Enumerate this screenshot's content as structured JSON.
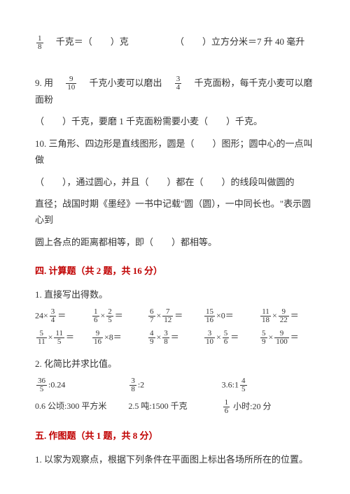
{
  "top": {
    "left_prefix_frac": {
      "n": "1",
      "d": "8"
    },
    "left_text": "　千克＝（　　）克",
    "right_text": "（　　）立方分米＝7 升 40 毫升"
  },
  "q9": {
    "prefix": "9. 用　",
    "frac1": {
      "n": "9",
      "d": "10"
    },
    "mid1": "　千克小麦可以磨出　",
    "frac2": {
      "n": "3",
      "d": "4"
    },
    "mid2": "　千克面粉，每千克小麦可以磨面粉",
    "line2": "（　　）千克，要磨 1 千克面粉需要小麦（　　）千克。"
  },
  "q10": {
    "l1": "10. 三角形、四边形是直线图形，圆是（　　）图形；圆中心的一点叫做",
    "l2": "（　　），通过圆心，并且（　　）都在（　　）的线段叫做圆的",
    "l3": "直径；战国时期《墨经》一书中记载\"圆（圆），一中同长也。\"表示圆心到",
    "l4": "圆上各点的距离都相等，即（　　）都相等。"
  },
  "sec4_title": "四. 计算题（共 2 题，共 16 分）",
  "calc1_title": "1. 直接写出得数。",
  "calc1_rows": [
    [
      {
        "a": {
          "n": "",
          "t": "24×"
        },
        "f": {
          "n": "3",
          "d": "4"
        },
        "eq": "＝"
      },
      {
        "f1": {
          "n": "1",
          "d": "6"
        },
        "op": "×",
        "f2": {
          "n": "2",
          "d": "5"
        },
        "eq": "＝"
      },
      {
        "f1": {
          "n": "6",
          "d": "7"
        },
        "op": "×",
        "f2": {
          "n": "7",
          "d": "12"
        },
        "eq": "＝"
      },
      {
        "f1": {
          "n": "15",
          "d": "16"
        },
        "op": "×0",
        "eq": "＝"
      },
      {
        "f1": {
          "n": "11",
          "d": "18"
        },
        "op": "×",
        "f2": {
          "n": "9",
          "d": "22"
        },
        "eq": "＝"
      }
    ],
    [
      {
        "f1": {
          "n": "5",
          "d": "11"
        },
        "op": "×",
        "f2": {
          "n": "11",
          "d": "5"
        },
        "eq": "＝"
      },
      {
        "f1": {
          "n": "9",
          "d": "16"
        },
        "op": "×8",
        "eq": "＝"
      },
      {
        "f1": {
          "n": "4",
          "d": "9"
        },
        "op": "×",
        "f2": {
          "n": "3",
          "d": "8"
        },
        "eq": "＝"
      },
      {
        "f1": {
          "n": "3",
          "d": "10"
        },
        "op": "×",
        "f2": {
          "n": "5",
          "d": "6"
        },
        "eq": "＝"
      },
      {
        "f1": {
          "n": "5",
          "d": "9"
        },
        "op": "×",
        "f2": {
          "n": "9",
          "d": "100"
        },
        "eq": "＝"
      }
    ]
  ],
  "calc2_title": "2. 化简比并求比值。",
  "calc2_rows": [
    [
      {
        "pre": "",
        "f": {
          "n": "36",
          "d": "5"
        },
        "post": ":0.24"
      },
      {
        "pre": "",
        "f": {
          "n": "3",
          "d": "8"
        },
        "post": ":2"
      },
      {
        "pre": "3.6:1",
        "f": {
          "n": "4",
          "d": "5"
        },
        "post": ""
      }
    ],
    [
      {
        "txt": "0.6 公顷:300 平方米"
      },
      {
        "txt": "2.5 吨:1500 千克"
      },
      {
        "pre": "",
        "f": {
          "n": "1",
          "d": "6"
        },
        "post": " 小时:20 分"
      }
    ]
  ],
  "sec5_title": "五. 作图题（共 1 题，共 8 分）",
  "draw1": "1. 以家为观察点，根据下列条件在平面图上标出各场所所在的位置。"
}
